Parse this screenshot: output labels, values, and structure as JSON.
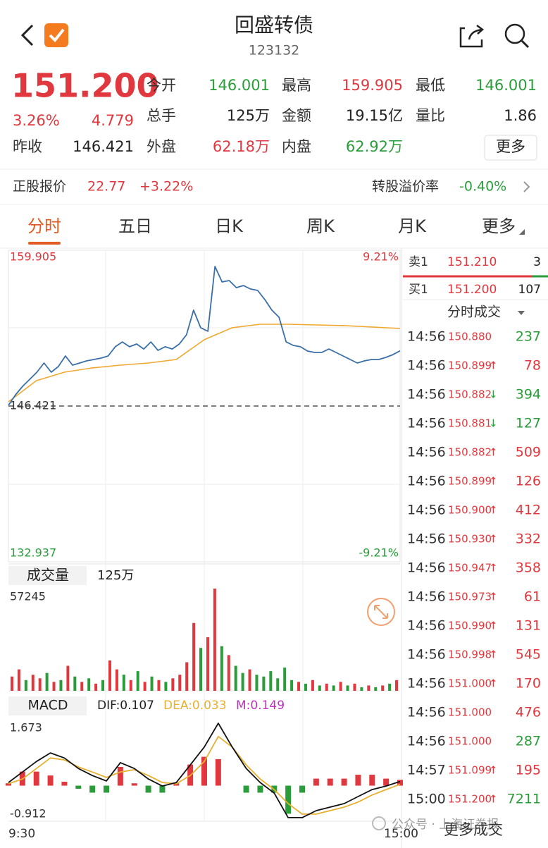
{
  "header": {
    "title": "回盛转债",
    "code": "123132"
  },
  "quote": {
    "price": "151.200",
    "change_pct": "3.26%",
    "change": "4.779",
    "prev_close_label": "昨收",
    "prev_close": "146.421",
    "stats": [
      {
        "label": "今开",
        "value": "146.001",
        "color": "#2a9d3a"
      },
      {
        "label": "最高",
        "value": "159.905",
        "color": "#e0383e"
      },
      {
        "label": "最低",
        "value": "146.001",
        "color": "#2a9d3a"
      },
      {
        "label": "总手",
        "value": "125万",
        "color": "#222222"
      },
      {
        "label": "金额",
        "value": "19.15亿",
        "color": "#222222"
      },
      {
        "label": "量比",
        "value": "1.86",
        "color": "#222222"
      },
      {
        "label": "外盘",
        "value": "62.18万",
        "color": "#e0383e"
      },
      {
        "label": "内盘",
        "value": "62.92万",
        "color": "#2a9d3a"
      }
    ],
    "more": "更多"
  },
  "underlying": {
    "label": "正股报价",
    "price": "22.77",
    "change": "+3.22%",
    "premium_label": "转股溢价率",
    "premium": "-0.40%"
  },
  "tabs": {
    "items": [
      "分时",
      "五日",
      "日K",
      "周K",
      "月K",
      "更多"
    ],
    "active": 0
  },
  "price_chart": {
    "ylim": [
      132.937,
      159.905
    ],
    "yticks": [
      159.905,
      132.937
    ],
    "y2lim": [
      -9.21,
      9.21
    ],
    "y2ticks": [
      {
        "value": 9.21,
        "label": "9.21%"
      },
      {
        "value": -9.21,
        "label": "-9.21%"
      }
    ],
    "prev_close": 146.421,
    "series": [
      {
        "color": "#3b6fa8",
        "values": [
          146.48,
          147.4,
          148.13,
          148.74,
          149.35,
          150.14,
          149.35,
          149.84,
          150.75,
          149.96,
          150.14,
          150.33,
          150.45,
          150.57,
          150.75,
          151.55,
          151.97,
          151.55,
          151.79,
          151.36,
          151.97,
          151.24,
          151.55,
          151.36,
          151.79,
          152.58,
          154.72,
          153.2,
          152.89,
          158.5,
          157.16,
          157.28,
          156.67,
          156.85,
          156.55,
          156.43,
          155.64,
          154.72,
          154.11,
          151.97,
          151.67,
          151.55,
          151.18,
          151.06,
          151.06,
          151.36,
          151.06,
          150.75,
          150.45,
          150.14,
          150.33,
          150.45,
          150.45,
          150.63,
          150.87,
          151.2
        ]
      },
      {
        "color": "#f0a830",
        "values": [
          146.79,
          148.62,
          149.35,
          149.72,
          149.96,
          150.14,
          150.45,
          152.16,
          153.2,
          153.5,
          153.5,
          153.44,
          153.38,
          153.26,
          153.13
        ]
      }
    ],
    "x_labels": [
      "9:30",
      "15:00"
    ]
  },
  "volume_chart": {
    "button": "成交量",
    "total": "125万",
    "ylim": [
      0,
      57245
    ],
    "yticks": [
      57245
    ],
    "series": [
      {
        "color": "#e0383e",
        "values": [
          8000,
          12000,
          null,
          9000,
          7000,
          null,
          5000,
          null,
          14000,
          null,
          5000,
          null,
          4000,
          null,
          17000,
          12000,
          null,
          6000,
          null,
          5000,
          null,
          6000,
          null,
          7000,
          9000,
          16000,
          38000,
          null,
          30000,
          57245,
          null,
          20000,
          null,
          null,
          12000,
          null,
          null,
          null,
          null,
          null,
          null,
          5000,
          null,
          6000,
          null,
          4000,
          null,
          5000,
          null,
          4000,
          null,
          3000,
          null,
          3000,
          null,
          6000
        ]
      },
      {
        "color": "#2a9d3a",
        "values": [
          null,
          null,
          6000,
          null,
          null,
          10000,
          null,
          6000,
          null,
          8000,
          null,
          7000,
          null,
          6000,
          null,
          null,
          9000,
          null,
          11000,
          null,
          8000,
          null,
          5000,
          null,
          null,
          null,
          null,
          24000,
          null,
          null,
          25000,
          null,
          14000,
          10000,
          null,
          9000,
          8000,
          11000,
          7000,
          13000,
          6000,
          null,
          4000,
          null,
          3000,
          null,
          3000,
          null,
          3000,
          null,
          2000,
          null,
          2000,
          null,
          4000,
          null
        ]
      }
    ]
  },
  "macd_chart": {
    "button": "MACD",
    "dif_label": "DIF:0.107",
    "dea_label": "DEA:0.033",
    "m_label": "M:0.149",
    "ylim": [
      -0.912,
      1.673
    ],
    "yticks": [
      1.673,
      -0.912
    ],
    "dif": {
      "color": "#111111",
      "values": [
        0.08,
        0.35,
        0.62,
        0.84,
        0.71,
        0.44,
        0.26,
        0.12,
        0.59,
        0.44,
        0.17,
        -0.01,
        0.08,
        0.53,
        0.99,
        1.6,
        0.99,
        0.44,
        0.08,
        -0.19,
        -0.82,
        -0.82,
        -0.64,
        -0.55,
        -0.46,
        -0.28,
        -0.1,
        -0.01,
        0.107
      ]
    },
    "dea": {
      "color": "#e8b030",
      "values": [
        0.05,
        0.17,
        0.44,
        0.71,
        0.66,
        0.48,
        0.35,
        0.21,
        0.35,
        0.41,
        0.26,
        0.08,
        0.05,
        0.26,
        0.62,
        1.26,
        0.99,
        0.53,
        0.17,
        -0.1,
        -0.46,
        -0.73,
        -0.73,
        -0.64,
        -0.55,
        -0.42,
        -0.24,
        -0.1,
        0.033
      ]
    },
    "hist": {
      "up_color": "#e0383e",
      "down_color": "#2a9d3a",
      "values": [
        0.06,
        0.36,
        0.36,
        0.26,
        0.1,
        -0.08,
        -0.18,
        -0.18,
        0.48,
        0.06,
        -0.18,
        -0.18,
        0.06,
        0.54,
        0.74,
        0.68,
        0.0,
        -0.18,
        -0.18,
        -0.18,
        -0.72,
        -0.18,
        0.18,
        0.18,
        0.18,
        0.28,
        0.28,
        0.18,
        0.149
      ]
    }
  },
  "order_book": {
    "ask": {
      "label": "卖1",
      "price": "151.210",
      "volume": "3"
    },
    "bid": {
      "label": "买1",
      "price": "151.200",
      "volume": "107"
    },
    "trades_title": "分时成交",
    "trades": [
      {
        "time": "14:56",
        "price": "150.880",
        "volume": "237",
        "color": "#2a9d3a"
      },
      {
        "time": "14:56",
        "price": "150.899",
        "arrow": "↑",
        "arrow_color": "#e0383e",
        "volume": "78",
        "color": "#e0383e"
      },
      {
        "time": "14:56",
        "price": "150.882",
        "arrow": "↓",
        "arrow_color": "#2a9d3a",
        "volume": "394",
        "color": "#2a9d3a"
      },
      {
        "time": "14:56",
        "price": "150.881",
        "arrow": "↓",
        "arrow_color": "#2a9d3a",
        "volume": "127",
        "color": "#2a9d3a"
      },
      {
        "time": "14:56",
        "price": "150.882",
        "arrow": "↑",
        "arrow_color": "#e0383e",
        "volume": "509",
        "color": "#e0383e"
      },
      {
        "time": "14:56",
        "price": "150.899",
        "arrow": "↑",
        "arrow_color": "#e0383e",
        "volume": "126",
        "color": "#e0383e"
      },
      {
        "time": "14:56",
        "price": "150.900",
        "arrow": "↑",
        "arrow_color": "#e0383e",
        "volume": "412",
        "color": "#e0383e"
      },
      {
        "time": "14:56",
        "price": "150.930",
        "arrow": "↑",
        "arrow_color": "#e0383e",
        "volume": "332",
        "color": "#e0383e"
      },
      {
        "time": "14:56",
        "price": "150.947",
        "arrow": "↑",
        "arrow_color": "#e0383e",
        "volume": "358",
        "color": "#e0383e"
      },
      {
        "time": "14:56",
        "price": "150.973",
        "arrow": "↑",
        "arrow_color": "#e0383e",
        "volume": "61",
        "color": "#e0383e"
      },
      {
        "time": "14:56",
        "price": "150.990",
        "arrow": "↑",
        "arrow_color": "#e0383e",
        "volume": "131",
        "color": "#e0383e"
      },
      {
        "time": "14:56",
        "price": "150.998",
        "arrow": "↑",
        "arrow_color": "#e0383e",
        "volume": "545",
        "color": "#e0383e"
      },
      {
        "time": "14:56",
        "price": "151.000",
        "arrow": "↑",
        "arrow_color": "#e0383e",
        "volume": "170",
        "color": "#e0383e"
      },
      {
        "time": "14:56",
        "price": "151.000",
        "volume": "476",
        "color": "#e0383e"
      },
      {
        "time": "14:56",
        "price": "151.000",
        "volume": "287",
        "color": "#2a9d3a"
      },
      {
        "time": "14:57",
        "price": "151.099",
        "arrow": "↑",
        "arrow_color": "#e0383e",
        "volume": "195",
        "color": "#e0383e"
      },
      {
        "time": "15:00",
        "price": "151.200",
        "arrow": "↑",
        "arrow_color": "#e0383e",
        "volume": "7211",
        "color": "#2a9d3a"
      }
    ]
  },
  "footer": {
    "more_trades": "更多成交",
    "watermark": "公众号 · 上海证券报"
  }
}
